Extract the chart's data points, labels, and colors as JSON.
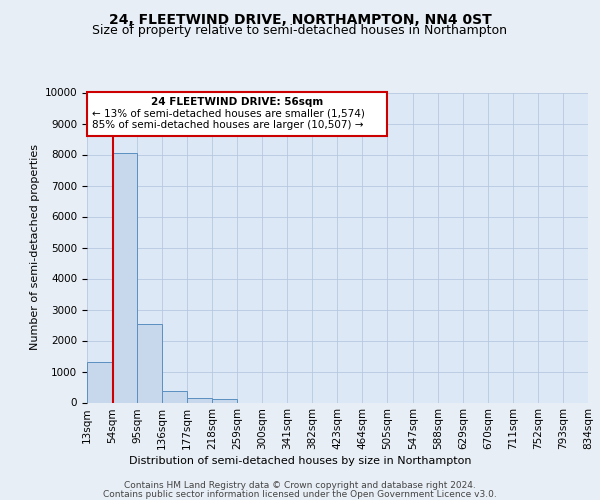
{
  "title": "24, FLEETWIND DRIVE, NORTHAMPTON, NN4 0ST",
  "subtitle": "Size of property relative to semi-detached houses in Northampton",
  "xlabel": "Distribution of semi-detached houses by size in Northampton",
  "ylabel": "Number of semi-detached properties",
  "footer_line1": "Contains HM Land Registry data © Crown copyright and database right 2024.",
  "footer_line2": "Contains public sector information licensed under the Open Government Licence v3.0.",
  "bar_edges": [
    13,
    54,
    95,
    136,
    177,
    218,
    259,
    300,
    341,
    382,
    423,
    464,
    505,
    547,
    588,
    629,
    670,
    711,
    752,
    793,
    834
  ],
  "bar_heights": [
    1320,
    8050,
    2530,
    380,
    155,
    100,
    0,
    0,
    0,
    0,
    0,
    0,
    0,
    0,
    0,
    0,
    0,
    0,
    0,
    0
  ],
  "bar_color": "#c8d8ec",
  "bar_edge_color": "#5a8fc0",
  "property_size": 56,
  "property_label": "24 FLEETWIND DRIVE: 56sqm",
  "pct_smaller": 13,
  "count_smaller": "1,574",
  "pct_larger": 85,
  "count_larger": "10,507",
  "vline_color": "#cc0000",
  "annotation_box_color": "#cc0000",
  "ylim": [
    0,
    10000
  ],
  "yticks": [
    0,
    1000,
    2000,
    3000,
    4000,
    5000,
    6000,
    7000,
    8000,
    9000,
    10000
  ],
  "bg_color": "#e8eef5",
  "plot_bg_color": "#dce8f5",
  "grid_color": "#b0c4de",
  "title_fontsize": 10,
  "subtitle_fontsize": 9,
  "axis_label_fontsize": 8,
  "tick_fontsize": 7.5,
  "annotation_fontsize": 7.5,
  "footer_fontsize": 6.5
}
